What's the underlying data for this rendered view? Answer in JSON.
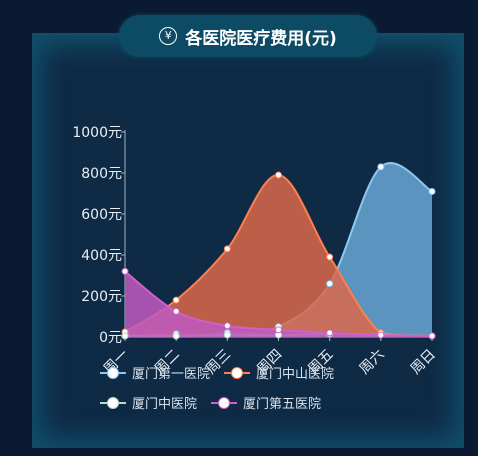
{
  "title": "各医院医疗费用(元)",
  "icon": "yen-circle-icon",
  "chart_data": {
    "type": "area",
    "title": "各医院医疗费用(元)",
    "categories": [
      "周一",
      "周二",
      "周三",
      "周四",
      "周五",
      "周六",
      "周日"
    ],
    "y_ticks": [
      "0元",
      "200元",
      "400元",
      "600元",
      "800元",
      "1000元"
    ],
    "ylim": [
      0,
      1000
    ],
    "smooth": true,
    "legend_position": "bottom",
    "series": [
      {
        "name": "厦门第一医院",
        "values": [
          10,
          15,
          20,
          50,
          260,
          830,
          710
        ],
        "line_color": "#8cc8f0",
        "fill_color": "#6aa7d6"
      },
      {
        "name": "厦门中山医院",
        "values": [
          25,
          180,
          430,
          790,
          390,
          20,
          5
        ],
        "line_color": "#ff7f50",
        "fill_color": "#d9694a"
      },
      {
        "name": "厦门中医院",
        "values": [
          5,
          5,
          10,
          10,
          15,
          10,
          5
        ],
        "line_color": "#b8d8c8",
        "fill_color": "#6fae98"
      },
      {
        "name": "厦门第五医院",
        "values": [
          320,
          125,
          55,
          35,
          20,
          10,
          5
        ],
        "line_color": "#d060c8",
        "fill_color": "#c05ac0"
      }
    ]
  }
}
